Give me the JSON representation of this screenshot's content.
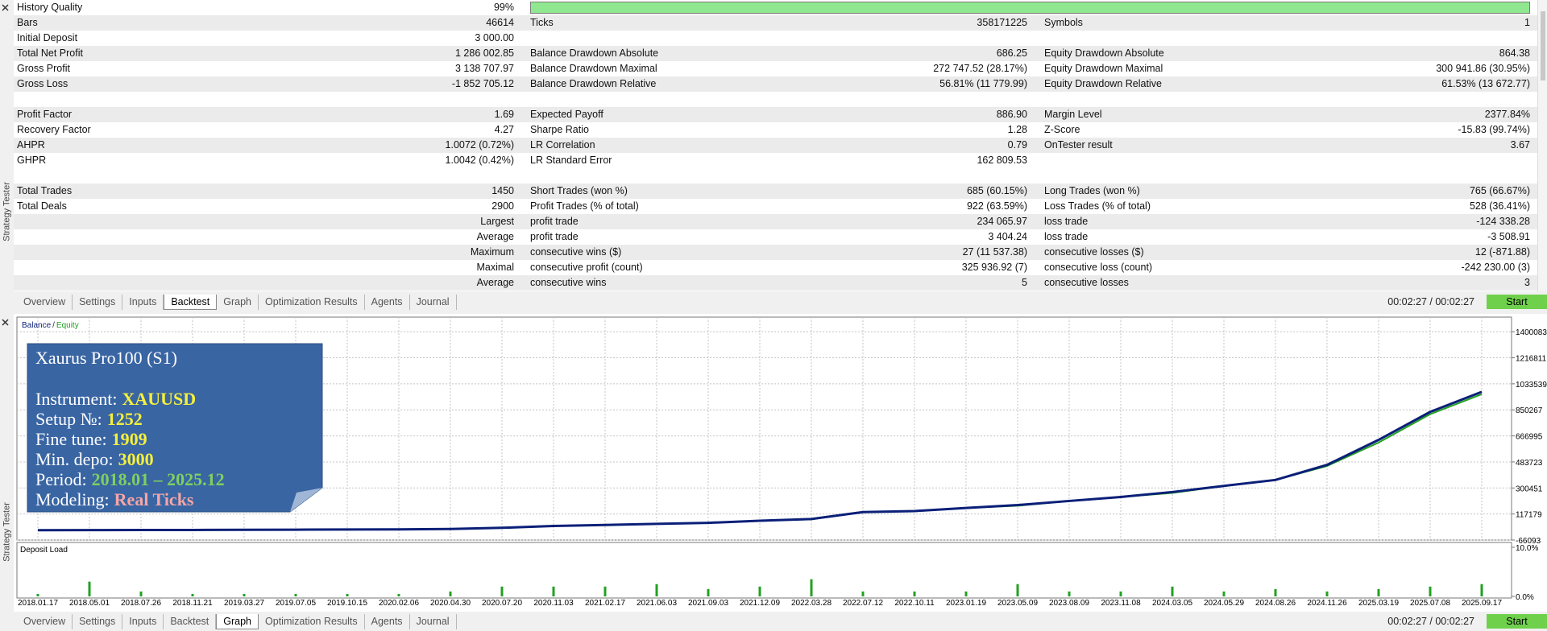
{
  "side_label": "Strategy Tester",
  "report": {
    "quality_color": "#8fe88f",
    "rows": [
      {
        "label1": "History Quality",
        "value1": "99%"
      },
      {
        "label1": "Bars",
        "value1": "46614",
        "label2": "Ticks",
        "value2": "358171225",
        "label3": "Symbols",
        "value3": "1"
      },
      {
        "label1": "Initial Deposit",
        "value1": "3 000.00"
      },
      {
        "label1": "Total Net Profit",
        "value1": "1 286 002.85",
        "label2": "Balance Drawdown Absolute",
        "value2": "686.25",
        "label3": "Equity Drawdown Absolute",
        "value3": "864.38"
      },
      {
        "label1": "Gross Profit",
        "value1": "3 138 707.97",
        "label2": "Balance Drawdown Maximal",
        "value2": "272 747.52 (28.17%)",
        "label3": "Equity Drawdown Maximal",
        "value3": "300 941.86 (30.95%)"
      },
      {
        "label1": "Gross Loss",
        "value1": "-1 852 705.12",
        "label2": "Balance Drawdown Relative",
        "value2": "56.81% (11 779.99)",
        "label3": "Equity Drawdown Relative",
        "value3": "61.53% (13 672.77)"
      },
      {},
      {
        "label1": "Profit Factor",
        "value1": "1.69",
        "label2": "Expected Payoff",
        "value2": "886.90",
        "label3": "Margin Level",
        "value3": "2377.84%"
      },
      {
        "label1": "Recovery Factor",
        "value1": "4.27",
        "label2": "Sharpe Ratio",
        "value2": "1.28",
        "label3": "Z-Score",
        "value3": "-15.83 (99.74%)"
      },
      {
        "label1": "AHPR",
        "value1": "1.0072 (0.72%)",
        "label2": "LR Correlation",
        "value2": "0.79",
        "label3": "OnTester result",
        "value3": "3.67"
      },
      {
        "label1": "GHPR",
        "value1": "1.0042 (0.42%)",
        "label2": "LR Standard Error",
        "value2": "162 809.53"
      },
      {},
      {
        "label1": "Total Trades",
        "value1": "1450",
        "label2": "Short Trades (won %)",
        "value2": "685 (60.15%)",
        "label3": "Long Trades (won %)",
        "value3": "765 (66.67%)"
      },
      {
        "label1": "Total Deals",
        "value1": "2900",
        "label2": "Profit Trades (% of total)",
        "value2": "922 (63.59%)",
        "label3": "Loss Trades (% of total)",
        "value3": "528 (36.41%)"
      },
      {
        "value1": "Largest",
        "label2": "profit trade",
        "value2": "234 065.97",
        "label3": "loss trade",
        "value3": "-124 338.28"
      },
      {
        "value1": "Average",
        "label2": "profit trade",
        "value2": "3 404.24",
        "label3": "loss trade",
        "value3": "-3 508.91"
      },
      {
        "value1": "Maximum",
        "label2": "consecutive wins ($)",
        "value2": "27 (11 537.38)",
        "label3": "consecutive losses ($)",
        "value3": "12 (-871.88)"
      },
      {
        "value1": "Maximal",
        "label2": "consecutive profit (count)",
        "value2": "325 936.92 (7)",
        "label3": "consecutive loss (count)",
        "value3": "-242 230.00 (3)"
      },
      {
        "value1": "Average",
        "label2": "consecutive wins",
        "value2": "5",
        "label3": "consecutive losses",
        "value3": "3"
      }
    ]
  },
  "tabs": [
    "Overview",
    "Settings",
    "Inputs",
    "Backtest",
    "Graph",
    "Optimization Results",
    "Agents",
    "Journal"
  ],
  "tab_bars": [
    {
      "active": 3,
      "timer": "00:02:27 / 00:02:27",
      "button": "Start"
    },
    {
      "active": 4,
      "timer": "00:02:27 / 00:02:27",
      "button": "Start"
    }
  ],
  "info_box": {
    "title": "Xaurus Pro100 (S1)",
    "color": "#3965a3",
    "lines": [
      {
        "label": "Instrument:",
        "value": "XAUUSD",
        "color": "#f5f03c"
      },
      {
        "label": "Setup №:",
        "value": "1252",
        "color": "#f5f03c"
      },
      {
        "label": "Fine tune:",
        "value": "1909",
        "color": "#f5f03c"
      },
      {
        "label": "Min. depo:",
        "value": "3000",
        "color": "#f5f03c"
      },
      {
        "label": "Period:",
        "value": "2018.01 – 2025.12",
        "color": "#7fd060"
      },
      {
        "label": "Modeling:",
        "value": "Real Ticks",
        "color": "#f4a6a6"
      }
    ]
  },
  "chart_data": [
    {
      "type": "line",
      "legend_separator": "/",
      "x": [
        "2018.01.17",
        "2018.05.01",
        "2018.07.26",
        "2018.11.21",
        "2019.03.27",
        "2019.07.05",
        "2019.10.15",
        "2020.02.06",
        "2020.04.30",
        "2020.07.20",
        "2020.11.03",
        "2021.02.17",
        "2021.06.03",
        "2021.09.03",
        "2021.12.09",
        "2022.03.28",
        "2022.07.12",
        "2022.10.11",
        "2023.01.19",
        "2023.05.09",
        "2023.08.09",
        "2023.11.08",
        "2024.03.05",
        "2024.05.29",
        "2024.08.26",
        "2024.11.26",
        "2025.03.19",
        "2025.07.08",
        "2025.09.17"
      ],
      "series": [
        {
          "name": "Equity",
          "color": "#22a022",
          "values": [
            3000,
            4000,
            5000,
            5000,
            6000,
            7000,
            8000,
            9000,
            12000,
            20000,
            33000,
            40000,
            48000,
            55000,
            70000,
            80000,
            131000,
            138000,
            160000,
            175000,
            209000,
            237000,
            265000,
            315000,
            357000,
            455000,
            620000,
            820000,
            960000
          ]
        },
        {
          "name": "Balance",
          "color": "#0a1f78",
          "values": [
            3000,
            4000,
            5000,
            5000,
            6000,
            7000,
            8000,
            9000,
            12000,
            20000,
            33000,
            40000,
            48000,
            55000,
            70000,
            82000,
            131000,
            138000,
            160000,
            180000,
            209000,
            237000,
            272000,
            315000,
            357000,
            463000,
            639000,
            836000,
            977000
          ]
        }
      ],
      "ylim": [
        -66093,
        1503000
      ],
      "yticks": [
        1400083,
        1216811,
        1033539,
        850267,
        666995,
        483723,
        300451,
        117179,
        -66093
      ],
      "grid": true
    },
    {
      "type": "bar",
      "title": "Deposit Load",
      "color": "#22a022",
      "values": [
        0.5,
        3,
        1,
        0.5,
        0.5,
        0.5,
        0.5,
        0.5,
        1,
        2,
        2,
        2,
        2.5,
        1.5,
        2,
        3.5,
        1,
        1,
        1,
        2.5,
        1,
        1,
        2,
        1,
        1.5,
        1,
        1.5,
        2,
        2.5
      ],
      "ylim": [
        0,
        10
      ],
      "yticks": [
        {
          "value": 10,
          "label": "10.0%"
        },
        {
          "value": 0,
          "label": "0.0%"
        }
      ]
    }
  ]
}
